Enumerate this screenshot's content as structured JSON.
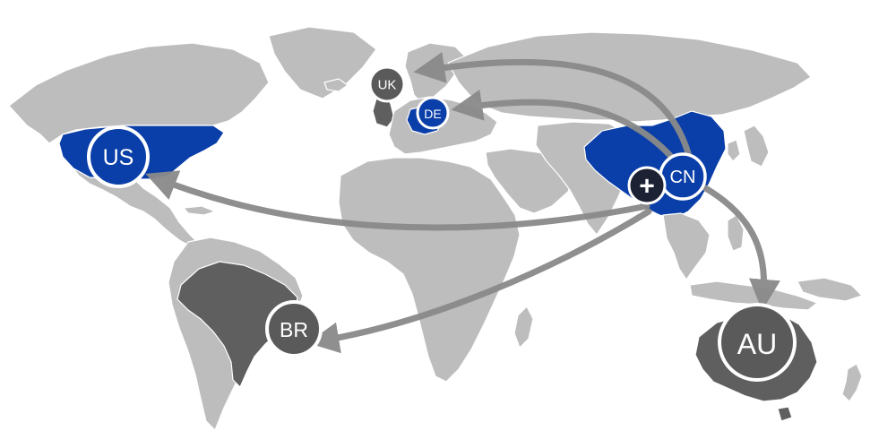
{
  "colors": {
    "land": "#bdbdbd",
    "highlight_blue": "#0a3ea8",
    "highlight_dark": "#5f5f5f",
    "arrow": "#8a8a8a",
    "marker_text": "#ffffff",
    "plus_marker": "#1c2233"
  },
  "markers": [
    {
      "id": "us",
      "label": "US",
      "fill": "#0a3ea8"
    },
    {
      "id": "uk",
      "label": "UK",
      "fill": "#5a5a5a"
    },
    {
      "id": "de",
      "label": "DE",
      "fill": "#0a3ea8"
    },
    {
      "id": "cn",
      "label": "CN",
      "fill": "#0a3ea8"
    },
    {
      "id": "br",
      "label": "BR",
      "fill": "#5a5a5a"
    },
    {
      "id": "au",
      "label": "AU",
      "fill": "#5a5a5a"
    }
  ],
  "origin_marker": {
    "symbol": "+",
    "icon": "plus-icon",
    "fill": "#1c2233"
  },
  "flows": [
    {
      "from": "cn",
      "to": "uk"
    },
    {
      "from": "cn",
      "to": "de"
    },
    {
      "from": "cn",
      "to": "us"
    },
    {
      "from": "cn",
      "to": "br"
    },
    {
      "from": "cn",
      "to": "au"
    }
  ]
}
